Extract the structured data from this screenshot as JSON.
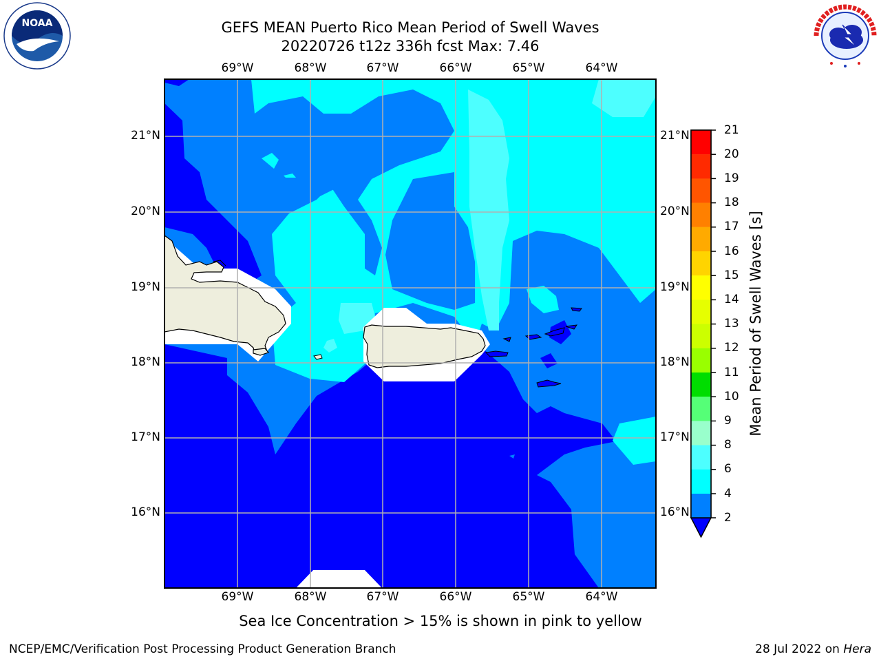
{
  "header": {
    "title_line1": "GEFS MEAN Puerto Rico Mean Period of Swell Waves",
    "title_line2": "20220726 t12z 336h fcst   Max: 7.46"
  },
  "logos": {
    "left": {
      "icon": "noaa-logo",
      "text": "NOAA"
    },
    "right": {
      "icon": "nws-logo",
      "text": "NATIONAL WEATHER SERVICE"
    }
  },
  "map": {
    "lon_labels": [
      "69°W",
      "68°W",
      "67°W",
      "66°W",
      "65°W",
      "64°W"
    ],
    "lat_labels": [
      "21°N",
      "20°N",
      "19°N",
      "18°N",
      "17°N",
      "16°N"
    ],
    "colors": {
      "lev_2_4": "#0000ff",
      "lev_4_6": "#0080ff",
      "lev_6_8": "#00ffff",
      "lev_8_9": "#4dffff",
      "land": "#eeeedd",
      "grid": "#b0b0b0"
    }
  },
  "colorbar": {
    "label": "Mean Period of Swell Waves [s]",
    "ticks": [
      "21",
      "20",
      "19",
      "18",
      "17",
      "16",
      "15",
      "14",
      "13",
      "12",
      "11",
      "10",
      "9",
      "8",
      "6",
      "4",
      "2"
    ],
    "colors": [
      "#ff0000",
      "#ff2a00",
      "#ff5500",
      "#ff8000",
      "#ffaa00",
      "#ffd400",
      "#ffff00",
      "#e6ff00",
      "#ccff00",
      "#99ff00",
      "#33dd00",
      "#00dd00",
      "#55ff77",
      "#99ffcc",
      "#4dffff",
      "#00ffff",
      "#0080ff"
    ],
    "extend_color": "#0000ff"
  },
  "note": "Sea Ice Concentration > 15% is shown in pink to yellow",
  "footer": {
    "left": "NCEP/EMC/Verification Post Processing Product Generation Branch",
    "right_date": "28 Jul 2022 on ",
    "right_host": "Hera"
  }
}
